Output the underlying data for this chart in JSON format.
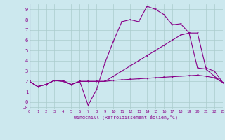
{
  "bg_color": "#cce8ee",
  "line_color": "#880088",
  "grid_color": "#aacccc",
  "xlim": [
    0,
    23
  ],
  "ylim": [
    -0.7,
    9.5
  ],
  "xticks": [
    0,
    1,
    2,
    3,
    4,
    5,
    6,
    7,
    8,
    9,
    10,
    11,
    12,
    13,
    14,
    15,
    16,
    17,
    18,
    19,
    20,
    21,
    22,
    23
  ],
  "yticks": [
    9,
    8,
    7,
    6,
    5,
    4,
    3,
    2,
    1,
    0,
    -0.5
  ],
  "ytick_labels": [
    "9",
    "8",
    "7",
    "6",
    "5",
    "4",
    "3",
    "2",
    "1",
    "0",
    "-0"
  ],
  "xlabel": "Windchill (Refroidissement éolien,°C)",
  "line1_x": [
    0,
    1,
    2,
    3,
    4,
    5,
    6,
    7,
    8,
    9,
    10,
    11,
    12,
    13,
    14,
    15,
    16,
    17,
    18,
    19,
    20,
    21,
    22,
    23
  ],
  "line1_y": [
    2.0,
    1.5,
    1.7,
    2.1,
    2.1,
    1.7,
    2.0,
    2.0,
    2.0,
    2.0,
    2.1,
    2.15,
    2.2,
    2.25,
    2.3,
    2.35,
    2.4,
    2.45,
    2.5,
    2.55,
    2.6,
    2.5,
    2.35,
    1.9
  ],
  "line2_x": [
    0,
    1,
    2,
    3,
    4,
    5,
    6,
    7,
    8,
    9,
    10,
    11,
    12,
    13,
    14,
    15,
    16,
    17,
    18,
    19,
    20,
    21,
    22,
    23
  ],
  "line2_y": [
    2.0,
    1.5,
    1.7,
    2.1,
    2.0,
    1.7,
    2.0,
    -0.3,
    1.2,
    3.8,
    5.9,
    7.8,
    8.0,
    7.8,
    9.3,
    9.0,
    8.5,
    7.5,
    7.6,
    6.7,
    3.3,
    3.2,
    2.5,
    1.9
  ],
  "line3_x": [
    0,
    1,
    2,
    3,
    4,
    5,
    6,
    7,
    8,
    9,
    10,
    11,
    12,
    13,
    14,
    15,
    16,
    17,
    18,
    19,
    20,
    21,
    22,
    23
  ],
  "line3_y": [
    2.0,
    1.5,
    1.7,
    2.1,
    2.0,
    1.7,
    2.0,
    2.0,
    2.0,
    2.0,
    2.5,
    3.0,
    3.5,
    4.0,
    4.5,
    5.0,
    5.5,
    6.0,
    6.5,
    6.7,
    6.7,
    3.3,
    3.0,
    1.9
  ]
}
